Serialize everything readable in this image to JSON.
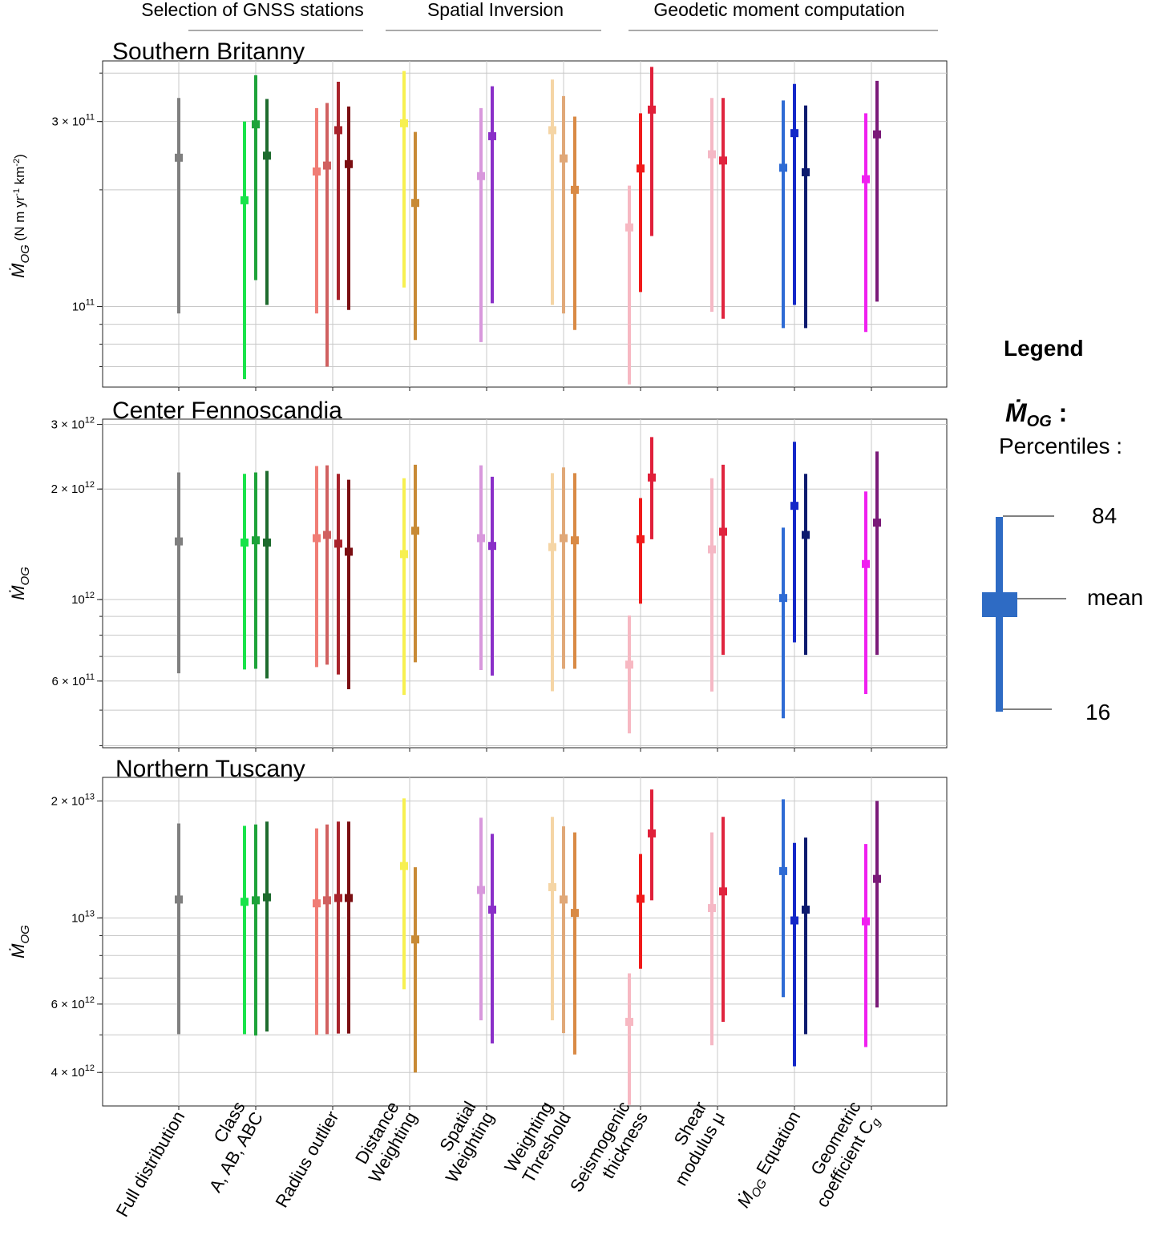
{
  "sections": [
    {
      "label": "Selection of GNSS stations"
    },
    {
      "label": "Spatial Inversion"
    },
    {
      "label": "Geodetic moment computation"
    }
  ],
  "categories": [
    "Full distribution",
    "Class A, AB, ABC",
    "Radius outlier",
    "Distance Weighting",
    "Spatial Weighting",
    "Weighting Threshold",
    "Seismogenic thickness",
    "Shear modulus μ",
    "Ṁ_OG Equation",
    "Geometric coefficient C_g"
  ],
  "x_tick_labels": [
    [
      "Full distribution"
    ],
    [
      "Class",
      "A, AB, ABC"
    ],
    [
      "Radius outlier"
    ],
    [
      "Distance",
      "Weighting"
    ],
    [
      "Spatial",
      "Weighting"
    ],
    [
      "Weighting",
      "Threshold"
    ],
    [
      "Seismogenic",
      "thickness"
    ],
    [
      "Shear",
      "modulus μ"
    ],
    [
      "Ṁ",
      "OG",
      " Equation"
    ],
    [
      "Geometric",
      "coefficient C",
      "g"
    ]
  ],
  "legend": {
    "title": "Legend",
    "symbol_label": "Ṁ",
    "symbol_sub": "OG",
    "symbol_suffix": " :",
    "percentiles_label": "Percentiles :",
    "p84": "84",
    "mean": "mean",
    "p16": "16",
    "color": "#2e6bc4"
  },
  "chart_data": [
    {
      "type": "errorbar",
      "title": "Southern Britanny",
      "ylabel": "Ṁ_OG (N m yr⁻¹ km⁻²)",
      "ylabel_parts": {
        "sym": "Ṁ",
        "sub": "OG",
        "unit_prefix": " (N m yr",
        "exp1": "-1",
        "unit_mid": " km",
        "exp2": "-2",
        "unit_suffix": ")"
      },
      "yscale": "log",
      "ylim": [
        62000000000,
        430000000000
      ],
      "yticks": [
        {
          "value": 300000000000,
          "mant": "3 × 10",
          "exp": "11"
        },
        {
          "value": 100000000000,
          "mant": "10",
          "exp": "11"
        }
      ],
      "grid": true,
      "series": [
        {
          "category": 0,
          "color": "#7f7f7f",
          "mean": 242000000000.0,
          "p16": 96000000000.0,
          "p84": 345000000000.0
        },
        {
          "category": 1,
          "color": "#19e34a",
          "mean": 188000000000.0,
          "p16": 65000000000.0,
          "p84": 300000000000.0
        },
        {
          "category": 1,
          "color": "#1ea33a",
          "mean": 295000000000.0,
          "p16": 117000000000.0,
          "p84": 395000000000.0
        },
        {
          "category": 1,
          "color": "#1e6b2e",
          "mean": 245000000000.0,
          "p16": 101000000000.0,
          "p84": 343000000000.0
        },
        {
          "category": 2,
          "color": "#f07d75",
          "mean": 223000000000.0,
          "p16": 96000000000.0,
          "p84": 325000000000.0
        },
        {
          "category": 2,
          "color": "#d06060",
          "mean": 231000000000.0,
          "p16": 70000000000.0,
          "p84": 335000000000.0
        },
        {
          "category": 2,
          "color": "#a8232b",
          "mean": 285000000000.0,
          "p16": 104000000000.0,
          "p84": 380000000000.0
        },
        {
          "category": 2,
          "color": "#7a0e12",
          "mean": 233000000000.0,
          "p16": 98000000000.0,
          "p84": 328000000000.0
        },
        {
          "category": 3,
          "color": "#f7f050",
          "mean": 297000000000.0,
          "p16": 112000000000.0,
          "p84": 405000000000.0
        },
        {
          "category": 3,
          "color": "#c88a35",
          "mean": 185000000000.0,
          "p16": 82000000000.0,
          "p84": 282000000000.0
        },
        {
          "category": 4,
          "color": "#d898dc",
          "mean": 217000000000.0,
          "p16": 81000000000.0,
          "p84": 325000000000.0
        },
        {
          "category": 4,
          "color": "#8a2fc8",
          "mean": 275000000000.0,
          "p16": 102000000000.0,
          "p84": 370000000000.0
        },
        {
          "category": 5,
          "color": "#f5d5a5",
          "mean": 285000000000.0,
          "p16": 101000000000.0,
          "p84": 385000000000.0
        },
        {
          "category": 5,
          "color": "#e0a878",
          "mean": 241000000000.0,
          "p16": 96000000000.0,
          "p84": 349000000000.0
        },
        {
          "category": 5,
          "color": "#d98a45",
          "mean": 200000000000.0,
          "p16": 87000000000.0,
          "p84": 309000000000.0
        },
        {
          "category": 6,
          "color": "#f7b8c2",
          "mean": 160000000000.0,
          "p16": 63000000000.0,
          "p84": 205000000000.0
        },
        {
          "category": 6,
          "color": "#f01a1a",
          "mean": 227000000000.0,
          "p16": 109000000000.0,
          "p84": 315000000000.0
        },
        {
          "category": 6,
          "color": "#e0203a",
          "mean": 322000000000.0,
          "p16": 152000000000.0,
          "p84": 415000000000.0
        },
        {
          "category": 7,
          "color": "#f5b8c5",
          "mean": 247000000000.0,
          "p16": 97000000000.0,
          "p84": 345000000000.0
        },
        {
          "category": 7,
          "color": "#e0253f",
          "mean": 238000000000.0,
          "p16": 93000000000.0,
          "p84": 345000000000.0
        },
        {
          "category": 8,
          "color": "#2e6bd4",
          "mean": 228000000000.0,
          "p16": 88000000000.0,
          "p84": 340000000000.0
        },
        {
          "category": 8,
          "color": "#1428c8",
          "mean": 280000000000.0,
          "p16": 101000000000.0,
          "p84": 375000000000.0
        },
        {
          "category": 8,
          "color": "#0d1a6e",
          "mean": 222000000000.0,
          "p16": 88000000000.0,
          "p84": 330000000000.0
        },
        {
          "category": 9,
          "color": "#f020f0",
          "mean": 213000000000.0,
          "p16": 86000000000.0,
          "p84": 315000000000.0
        },
        {
          "category": 9,
          "color": "#7a1a78",
          "mean": 278000000000.0,
          "p16": 103000000000.0,
          "p84": 382000000000.0
        }
      ]
    },
    {
      "type": "errorbar",
      "title": "Center Fennoscandia",
      "ylabel": "Ṁ_OG",
      "ylabel_parts": {
        "sym": "Ṁ",
        "sub": "OG"
      },
      "yscale": "log",
      "ylim": [
        395000000000,
        3100000000000
      ],
      "yticks": [
        {
          "value": 3000000000000,
          "mant": "3 × 10",
          "exp": "12"
        },
        {
          "value": 2000000000000,
          "mant": "2 × 10",
          "exp": "12"
        },
        {
          "value": 1000000000000,
          "mant": "10",
          "exp": "12"
        },
        {
          "value": 600000000000,
          "mant": "6 × 10",
          "exp": "11"
        }
      ],
      "grid": true,
      "series": [
        {
          "category": 0,
          "color": "#7f7f7f",
          "mean": 1440000000000.0,
          "p16": 630000000000.0,
          "p84": 2220000000000.0
        },
        {
          "category": 1,
          "color": "#19e34a",
          "mean": 1430000000000.0,
          "p16": 645000000000.0,
          "p84": 2200000000000.0
        },
        {
          "category": 1,
          "color": "#1ea33a",
          "mean": 1450000000000.0,
          "p16": 648000000000.0,
          "p84": 2220000000000.0
        },
        {
          "category": 1,
          "color": "#1e6b2e",
          "mean": 1430000000000.0,
          "p16": 610000000000.0,
          "p84": 2240000000000.0
        },
        {
          "category": 2,
          "color": "#f07d75",
          "mean": 1470000000000.0,
          "p16": 655000000000.0,
          "p84": 2310000000000.0
        },
        {
          "category": 2,
          "color": "#d06060",
          "mean": 1500000000000.0,
          "p16": 665000000000.0,
          "p84": 2320000000000.0
        },
        {
          "category": 2,
          "color": "#a8232b",
          "mean": 1420000000000.0,
          "p16": 625000000000.0,
          "p84": 2200000000000.0
        },
        {
          "category": 2,
          "color": "#7a0e12",
          "mean": 1350000000000.0,
          "p16": 570000000000.0,
          "p84": 2120000000000.0
        },
        {
          "category": 3,
          "color": "#f7f050",
          "mean": 1330000000000.0,
          "p16": 550000000000.0,
          "p84": 2140000000000.0
        },
        {
          "category": 3,
          "color": "#c88a35",
          "mean": 1540000000000.0,
          "p16": 675000000000.0,
          "p84": 2330000000000.0
        },
        {
          "category": 4,
          "color": "#d898dc",
          "mean": 1470000000000.0,
          "p16": 643000000000.0,
          "p84": 2320000000000.0
        },
        {
          "category": 4,
          "color": "#8a2fc8",
          "mean": 1400000000000.0,
          "p16": 621000000000.0,
          "p84": 2160000000000.0
        },
        {
          "category": 5,
          "color": "#f5d5a5",
          "mean": 1390000000000.0,
          "p16": 563000000000.0,
          "p84": 2210000000000.0
        },
        {
          "category": 5,
          "color": "#e0a878",
          "mean": 1470000000000.0,
          "p16": 648000000000.0,
          "p84": 2290000000000.0
        },
        {
          "category": 5,
          "color": "#d98a45",
          "mean": 1450000000000.0,
          "p16": 648000000000.0,
          "p84": 2210000000000.0
        },
        {
          "category": 6,
          "color": "#f7b8c2",
          "mean": 665000000000.0,
          "p16": 432000000000.0,
          "p84": 905000000000.0
        },
        {
          "category": 6,
          "color": "#f01a1a",
          "mean": 1460000000000.0,
          "p16": 975000000000.0,
          "p84": 1890000000000.0
        },
        {
          "category": 6,
          "color": "#e0203a",
          "mean": 2150000000000.0,
          "p16": 1460000000000.0,
          "p84": 2770000000000.0
        },
        {
          "category": 7,
          "color": "#f5b8c5",
          "mean": 1370000000000.0,
          "p16": 562000000000.0,
          "p84": 2140000000000.0
        },
        {
          "category": 7,
          "color": "#e0253f",
          "mean": 1530000000000.0,
          "p16": 707000000000.0,
          "p84": 2330000000000.0
        },
        {
          "category": 8,
          "color": "#2e6bd4",
          "mean": 1010000000000.0,
          "p16": 475000000000.0,
          "p84": 1570000000000.0
        },
        {
          "category": 8,
          "color": "#1428c8",
          "mean": 1800000000000.0,
          "p16": 765000000000.0,
          "p84": 2690000000000.0
        },
        {
          "category": 8,
          "color": "#0d1a6e",
          "mean": 1500000000000.0,
          "p16": 707000000000.0,
          "p84": 2200000000000.0
        },
        {
          "category": 9,
          "color": "#f020f0",
          "mean": 1250000000000.0,
          "p16": 553000000000.0,
          "p84": 1970000000000.0
        },
        {
          "category": 9,
          "color": "#7a1a78",
          "mean": 1620000000000.0,
          "p16": 707000000000.0,
          "p84": 2530000000000.0
        }
      ]
    },
    {
      "type": "errorbar",
      "title": "Northern Tuscany",
      "ylabel": "Ṁ_OG",
      "ylabel_parts": {
        "sym": "Ṁ",
        "sub": "OG"
      },
      "yscale": "log",
      "ylim": [
        3280000000000,
        23000000000000
      ],
      "yticks": [
        {
          "value": 20000000000000,
          "mant": "2 × 10",
          "exp": "13"
        },
        {
          "value": 10000000000000,
          "mant": "10",
          "exp": "13"
        },
        {
          "value": 6000000000000,
          "mant": "6 × 10",
          "exp": "12"
        },
        {
          "value": 4000000000000,
          "mant": "4 × 10",
          "exp": "12"
        }
      ],
      "grid": true,
      "series": [
        {
          "category": 0,
          "color": "#7f7f7f",
          "mean": 11150000000000.0,
          "p16": 5020000000000.0,
          "p84": 17500000000000.0
        },
        {
          "category": 1,
          "color": "#19e34a",
          "mean": 11000000000000.0,
          "p16": 5020000000000.0,
          "p84": 17250000000000.0
        },
        {
          "category": 1,
          "color": "#1ea33a",
          "mean": 11100000000000.0,
          "p16": 4980000000000.0,
          "p84": 17400000000000.0
        },
        {
          "category": 1,
          "color": "#1e6b2e",
          "mean": 11300000000000.0,
          "p16": 5100000000000.0,
          "p84": 17700000000000.0
        },
        {
          "category": 2,
          "color": "#f07d75",
          "mean": 10900000000000.0,
          "p16": 5000000000000.0,
          "p84": 17000000000000.0
        },
        {
          "category": 2,
          "color": "#d06060",
          "mean": 11100000000000.0,
          "p16": 5020000000000.0,
          "p84": 17400000000000.0
        },
        {
          "category": 2,
          "color": "#a8232b",
          "mean": 11250000000000.0,
          "p16": 5040000000000.0,
          "p84": 17700000000000.0
        },
        {
          "category": 2,
          "color": "#7a0e12",
          "mean": 11250000000000.0,
          "p16": 5040000000000.0,
          "p84": 17700000000000.0
        },
        {
          "category": 3,
          "color": "#f7f050",
          "mean": 13600000000000.0,
          "p16": 6550000000000.0,
          "p84": 20300000000000.0
        },
        {
          "category": 3,
          "color": "#c88a35",
          "mean": 8800000000000.0,
          "p16": 4000000000000.0,
          "p84": 13500000000000.0
        },
        {
          "category": 4,
          "color": "#d898dc",
          "mean": 11800000000000.0,
          "p16": 5450000000000.0,
          "p84": 18100000000000.0
        },
        {
          "category": 4,
          "color": "#8a2fc8",
          "mean": 10500000000000.0,
          "p16": 4750000000000.0,
          "p84": 16450000000000.0
        },
        {
          "category": 5,
          "color": "#f5d5a5",
          "mean": 12000000000000.0,
          "p16": 5450000000000.0,
          "p84": 18200000000000.0
        },
        {
          "category": 5,
          "color": "#e0a878",
          "mean": 11150000000000.0,
          "p16": 5050000000000.0,
          "p84": 17200000000000.0
        },
        {
          "category": 5,
          "color": "#d98a45",
          "mean": 10300000000000.0,
          "p16": 4450000000000.0,
          "p84": 16600000000000.0
        },
        {
          "category": 6,
          "color": "#f7b8c2",
          "mean": 5400000000000.0,
          "p16": 3300000000000.0,
          "p84": 7200000000000.0
        },
        {
          "category": 6,
          "color": "#f01a1a",
          "mean": 11200000000000.0,
          "p16": 7400000000000.0,
          "p84": 14600000000000.0
        },
        {
          "category": 6,
          "color": "#e0203a",
          "mean": 16500000000000.0,
          "p16": 11100000000000.0,
          "p84": 21400000000000.0
        },
        {
          "category": 7,
          "color": "#f5b8c5",
          "mean": 10600000000000.0,
          "p16": 4700000000000.0,
          "p84": 16600000000000.0
        },
        {
          "category": 7,
          "color": "#e0253f",
          "mean": 11700000000000.0,
          "p16": 5400000000000.0,
          "p84": 18200000000000.0
        },
        {
          "category": 8,
          "color": "#2e6bd4",
          "mean": 13200000000000.0,
          "p16": 6250000000000.0,
          "p84": 20200000000000.0
        },
        {
          "category": 8,
          "color": "#1428c8",
          "mean": 9850000000000.0,
          "p16": 4150000000000.0,
          "p84": 15600000000000.0
        },
        {
          "category": 8,
          "color": "#0d1a6e",
          "mean": 10500000000000.0,
          "p16": 5020000000000.0,
          "p84": 16100000000000.0
        },
        {
          "category": 9,
          "color": "#f020f0",
          "mean": 9800000000000.0,
          "p16": 4650000000000.0,
          "p84": 15500000000000.0
        },
        {
          "category": 9,
          "color": "#7a1a78",
          "mean": 12600000000000.0,
          "p16": 5880000000000.0,
          "p84": 20000000000000.0
        }
      ]
    }
  ]
}
